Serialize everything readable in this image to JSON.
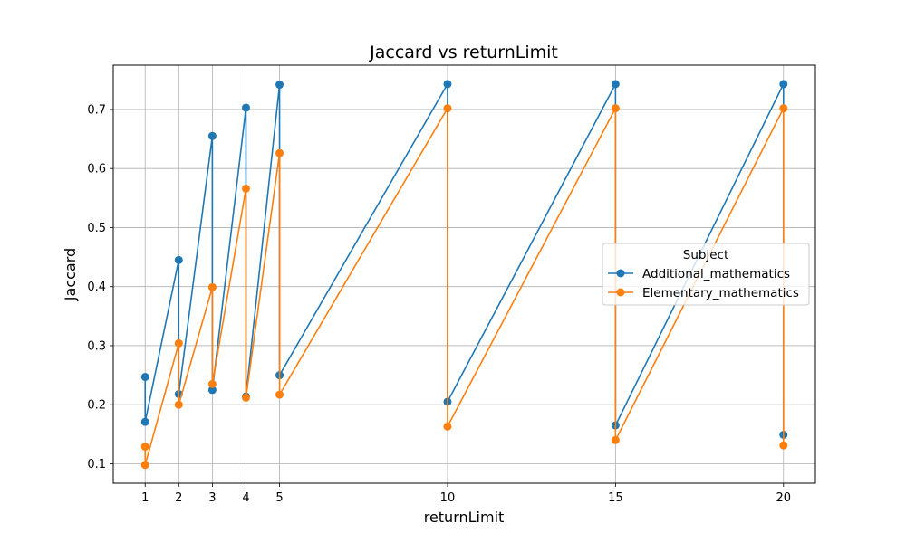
{
  "chart_data": {
    "type": "line",
    "title": "Jaccard vs returnLimit",
    "xlabel": "returnLimit",
    "ylabel": "Jaccard",
    "xlim": [
      0.05,
      20.95
    ],
    "ylim": [
      0.067,
      0.775
    ],
    "xticks": [
      1,
      2,
      3,
      4,
      5,
      10,
      15,
      20
    ],
    "yticks": [
      0.1,
      0.2,
      0.3,
      0.4,
      0.5,
      0.6,
      0.7
    ],
    "grid": true,
    "markers": true,
    "legend": {
      "title": "Subject",
      "placement": "center-right"
    },
    "series": [
      {
        "name": "Additional_mathematics",
        "color": "#1f77b4",
        "x": [
          1,
          1,
          2,
          2,
          3,
          3,
          4,
          4,
          5,
          5,
          10,
          10,
          15,
          15,
          20,
          20
        ],
        "y": [
          0.247,
          0.171,
          0.445,
          0.218,
          0.655,
          0.225,
          0.703,
          0.214,
          0.742,
          0.25,
          0.743,
          0.205,
          0.743,
          0.165,
          0.743,
          0.149
        ]
      },
      {
        "name": "Elementary_mathematics",
        "color": "#ff7f0e",
        "x": [
          1,
          1,
          2,
          2,
          3,
          3,
          4,
          4,
          5,
          5,
          10,
          10,
          15,
          15,
          20,
          20
        ],
        "y": [
          0.129,
          0.098,
          0.304,
          0.2,
          0.399,
          0.235,
          0.566,
          0.212,
          0.626,
          0.217,
          0.702,
          0.163,
          0.702,
          0.14,
          0.702,
          0.131
        ]
      }
    ]
  }
}
